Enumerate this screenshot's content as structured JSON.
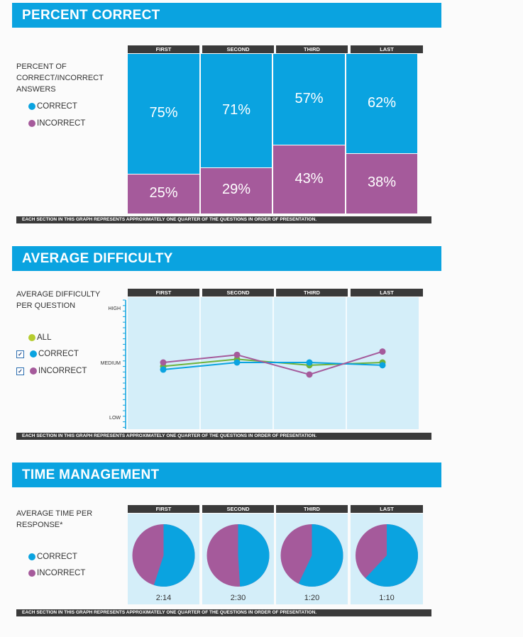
{
  "sections": {
    "percent_correct": {
      "title": "PERCENT CORRECT",
      "side_label_lines": [
        "PERCENT OF",
        "CORRECT/INCORRECT",
        "ANSWERS"
      ],
      "legend": [
        "CORRECT",
        "INCORRECT"
      ]
    },
    "avg_difficulty": {
      "title": "AVERAGE DIFFICULTY",
      "side_label_lines": [
        "AVERAGE DIFFICULTY",
        "PER QUESTION"
      ],
      "legend": [
        "ALL",
        "CORRECT",
        "INCORRECT"
      ]
    },
    "time_management": {
      "title": "TIME MANAGEMENT",
      "side_label_lines": [
        "AVERAGE TIME PER",
        "RESPONSE*"
      ],
      "legend": [
        "CORRECT",
        "INCORRECT"
      ]
    }
  },
  "footnote": "EACH SECTION IN THIS GRAPH REPRESENTS APPROXIMATELY ONE QUARTER OF THE QUESTIONS IN ORDER OF PRESENTATION.",
  "colors": {
    "correct": "#0aa3e0",
    "incorrect": "#a55a9b",
    "all": "#6fb23b",
    "all_dot": "#b5cc2f",
    "plot_bg": "#d4eef9"
  },
  "chart_data": [
    {
      "type": "bar",
      "title": "PERCENT CORRECT",
      "stacked": true,
      "categories": [
        "FIRST",
        "SECOND",
        "THIRD",
        "LAST"
      ],
      "series": [
        {
          "name": "CORRECT",
          "values": [
            75,
            71,
            57,
            62
          ]
        },
        {
          "name": "INCORRECT",
          "values": [
            25,
            29,
            43,
            38
          ]
        }
      ],
      "value_labels": {
        "correct": [
          "75%",
          "71%",
          "57%",
          "62%"
        ],
        "incorrect": [
          "25%",
          "29%",
          "43%",
          "38%"
        ]
      },
      "ylim": [
        0,
        100
      ]
    },
    {
      "type": "line",
      "title": "AVERAGE DIFFICULTY",
      "categories": [
        "FIRST",
        "SECOND",
        "THIRD",
        "LAST"
      ],
      "y_tick_labels": [
        "HIGH",
        "MEDIUM",
        "LOW"
      ],
      "ylim": [
        0,
        2
      ],
      "series": [
        {
          "name": "ALL",
          "values": [
            0.93,
            1.06,
            0.95,
            1.0
          ]
        },
        {
          "name": "CORRECT",
          "values": [
            0.87,
            1.0,
            1.0,
            0.95
          ]
        },
        {
          "name": "INCORRECT",
          "values": [
            1.0,
            1.14,
            0.78,
            1.2
          ]
        }
      ]
    },
    {
      "type": "pie",
      "title": "TIME MANAGEMENT",
      "categories": [
        "FIRST",
        "SECOND",
        "THIRD",
        "LAST"
      ],
      "time_labels": [
        "2:14",
        "2:30",
        "1:20",
        "1:10"
      ],
      "series": [
        {
          "name": "CORRECT",
          "values": [
            55,
            49,
            57,
            62
          ]
        },
        {
          "name": "INCORRECT",
          "values": [
            45,
            51,
            43,
            38
          ]
        }
      ]
    }
  ]
}
